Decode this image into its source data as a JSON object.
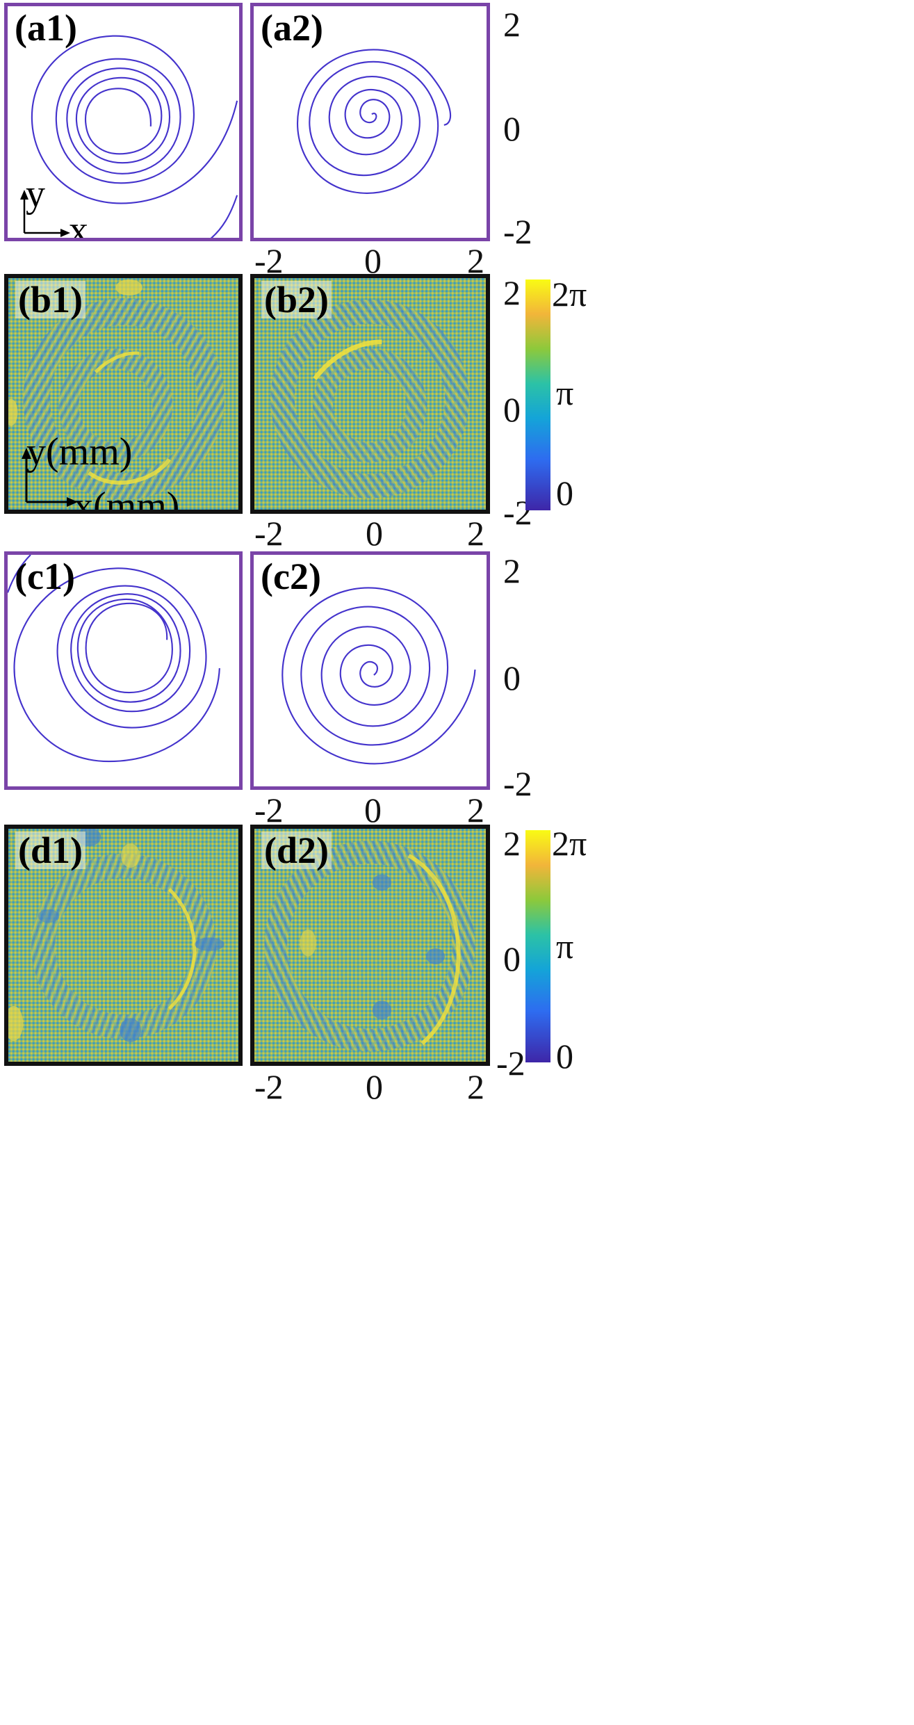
{
  "panels": {
    "a1": {
      "label": "(a1)"
    },
    "a2": {
      "label": "(a2)"
    },
    "b1": {
      "label": "(b1)"
    },
    "b2": {
      "label": "(b2)"
    },
    "c1": {
      "label": "(c1)"
    },
    "c2": {
      "label": "(c2)"
    },
    "d1": {
      "label": "(d1)"
    },
    "d2": {
      "label": "(d2)"
    }
  },
  "axes_indicator_a": {
    "x": "x",
    "y": "y"
  },
  "axes_indicator_b": {
    "x": "x(mm)",
    "y": "y(mm)"
  },
  "ticks": {
    "y": [
      "2",
      "0",
      "-2"
    ],
    "x": [
      "-2",
      "0",
      "2"
    ]
  },
  "colorbar": {
    "top": "2π",
    "mid": "π",
    "bottom": "0"
  },
  "colors": {
    "spiral": "#4433cc",
    "frame_purple": "#7a44a8",
    "frame_black": "#111111"
  }
}
